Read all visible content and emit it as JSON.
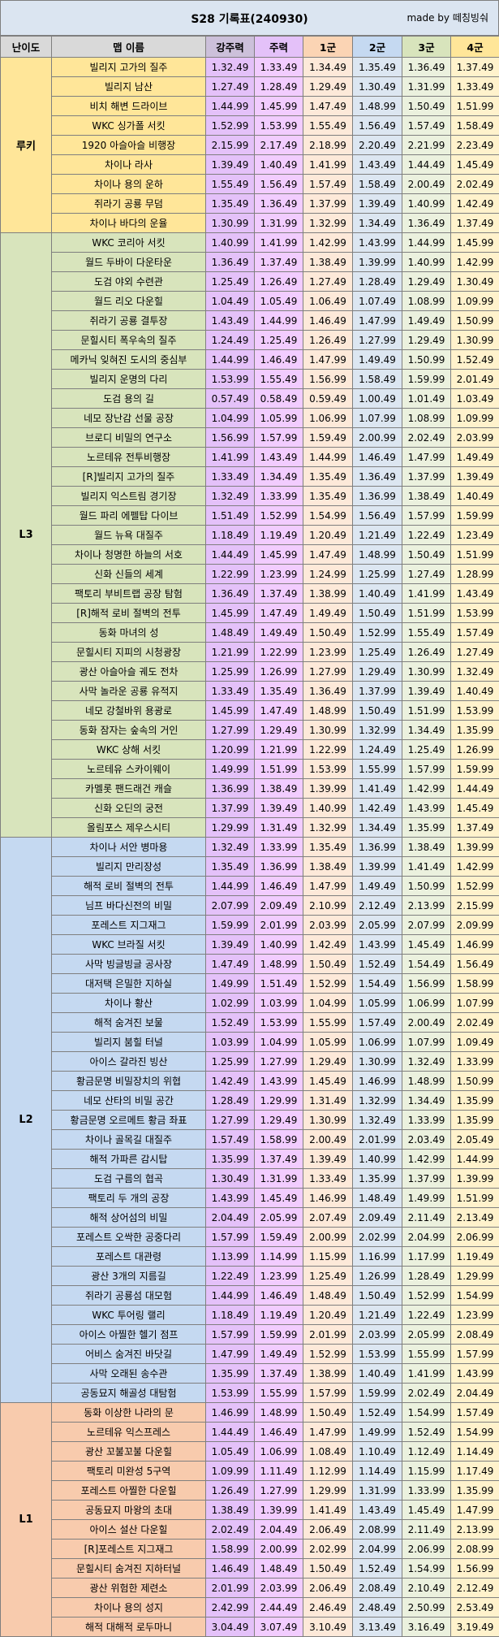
{
  "header": {
    "title": "S28 기록표(240930)",
    "credit": "made by 떼칭빙숴"
  },
  "columns": [
    "난이도",
    "맵 이름",
    "강주력",
    "주력",
    "1군",
    "2군",
    "3군",
    "4군"
  ],
  "colors": {
    "header_bg": "#dbe5f1",
    "col_header_bg": [
      "#d9d9d9",
      "#d9d9d9",
      "#ccc0da",
      "#e4c1f9",
      "#fbd4b4",
      "#c5d9f1",
      "#d8e4bc",
      "#ffe699"
    ],
    "col_bg": [
      "",
      "",
      "#e4c1f9",
      "#f2ccff",
      "#fde9d9",
      "#dce6f1",
      "#ebf1de",
      "#fff2cc"
    ],
    "group_bg": {
      "rookie": "#ffe699",
      "L3": "#d8e4bc",
      "L2": "#c5d9f1",
      "L1": "#f8cbad"
    }
  },
  "groups": [
    {
      "key": "rookie",
      "label": "루키",
      "rows": [
        [
          "빌리지 고가의 질주",
          "1.32.49",
          "1.33.49",
          "1.34.49",
          "1.35.49",
          "1.36.49",
          "1.37.49"
        ],
        [
          "빌리지 남산",
          "1.27.49",
          "1.28.49",
          "1.29.49",
          "1.30.49",
          "1.31.99",
          "1.33.49"
        ],
        [
          "비치 해변 드라이브",
          "1.44.99",
          "1.45.99",
          "1.47.49",
          "1.48.99",
          "1.50.49",
          "1.51.99"
        ],
        [
          "WKC 싱가폴 서킷",
          "1.52.99",
          "1.53.99",
          "1.55.49",
          "1.56.49",
          "1.57.49",
          "1.58.49"
        ],
        [
          "1920 아슬아슬 비행장",
          "2.15.99",
          "2.17.49",
          "2.18.99",
          "2.20.49",
          "2.21.99",
          "2.23.49"
        ],
        [
          "차이나 라사",
          "1.39.49",
          "1.40.49",
          "1.41.99",
          "1.43.49",
          "1.44.49",
          "1.45.49"
        ],
        [
          "차이나 용의 운하",
          "1.55.49",
          "1.56.49",
          "1.57.49",
          "1.58.49",
          "2.00.49",
          "2.02.49"
        ],
        [
          "쥐라기 공룡 무덤",
          "1.35.49",
          "1.36.49",
          "1.37.99",
          "1.39.49",
          "1.40.99",
          "1.42.49"
        ],
        [
          "차이나 바다의 운율",
          "1.30.99",
          "1.31.99",
          "1.32.99",
          "1.34.49",
          "1.36.49",
          "1.37.49"
        ]
      ]
    },
    {
      "key": "L3",
      "label": "L3",
      "rows": [
        [
          "WKC 코리아 서킷",
          "1.40.99",
          "1.41.99",
          "1.42.99",
          "1.43.99",
          "1.44.99",
          "1.45.99"
        ],
        [
          "월드 두바이 다운타운",
          "1.36.49",
          "1.37.49",
          "1.38.49",
          "1.39.99",
          "1.40.99",
          "1.42.99"
        ],
        [
          "도검 야외 수련관",
          "1.25.49",
          "1.26.49",
          "1.27.49",
          "1.28.49",
          "1.29.49",
          "1.30.49"
        ],
        [
          "월드 리오 다운힐",
          "1.04.49",
          "1.05.49",
          "1.06.49",
          "1.07.49",
          "1.08.99",
          "1.09.99"
        ],
        [
          "쥐라기 공룡 결투장",
          "1.43.49",
          "1.44.99",
          "1.46.49",
          "1.47.99",
          "1.49.49",
          "1.50.99"
        ],
        [
          "문힐시티 폭우속의 질주",
          "1.24.49",
          "1.25.49",
          "1.26.49",
          "1.27.99",
          "1.29.49",
          "1.30.99"
        ],
        [
          "메카닉 잊혀진 도시의 중심부",
          "1.44.99",
          "1.46.49",
          "1.47.99",
          "1.49.49",
          "1.50.99",
          "1.52.49"
        ],
        [
          "빌리지 운명의 다리",
          "1.53.99",
          "1.55.49",
          "1.56.99",
          "1.58.49",
          "1.59.99",
          "2.01.49"
        ],
        [
          "도검 용의 길",
          "0.57.49",
          "0.58.49",
          "0.59.49",
          "1.00.49",
          "1.01.49",
          "1.03.49"
        ],
        [
          "네모 장난감 선물 공장",
          "1.04.99",
          "1.05.99",
          "1.06.99",
          "1.07.99",
          "1.08.99",
          "1.09.99"
        ],
        [
          "브로디 비밀의 연구소",
          "1.56.99",
          "1.57.99",
          "1.59.49",
          "2.00.99",
          "2.02.49",
          "2.03.99"
        ],
        [
          "노르테유 전투비행장",
          "1.41.99",
          "1.43.49",
          "1.44.99",
          "1.46.49",
          "1.47.99",
          "1.49.49"
        ],
        [
          "[R]빌리지 고가의 질주",
          "1.33.49",
          "1.34.49",
          "1.35.49",
          "1.36.49",
          "1.37.99",
          "1.39.49"
        ],
        [
          "빌리지 익스트림 경기장",
          "1.32.49",
          "1.33.99",
          "1.35.49",
          "1.36.99",
          "1.38.49",
          "1.40.49"
        ],
        [
          "월드 파리 에펠탑 다이브",
          "1.51.49",
          "1.52.99",
          "1.54.99",
          "1.56.49",
          "1.57.99",
          "1.59.99"
        ],
        [
          "월드 뉴욕 대질주",
          "1.18.49",
          "1.19.49",
          "1.20.49",
          "1.21.49",
          "1.22.49",
          "1.23.49"
        ],
        [
          "차이나 청명한 하늘의 서호",
          "1.44.49",
          "1.45.99",
          "1.47.49",
          "1.48.99",
          "1.50.49",
          "1.51.99"
        ],
        [
          "신화 신들의 세계",
          "1.22.99",
          "1.23.99",
          "1.24.99",
          "1.25.99",
          "1.27.49",
          "1.28.99"
        ],
        [
          "팩토리 부비트랩 공장 탐험",
          "1.36.49",
          "1.37.49",
          "1.38.99",
          "1.40.49",
          "1.41.99",
          "1.43.49"
        ],
        [
          "[R]해적 로비 절벽의 전투",
          "1.45.99",
          "1.47.49",
          "1.49.49",
          "1.50.49",
          "1.51.99",
          "1.53.99"
        ],
        [
          "동화 마녀의 성",
          "1.48.49",
          "1.49.49",
          "1.50.49",
          "1.52.99",
          "1.55.49",
          "1.57.49"
        ],
        [
          "문힐시티 지피의 시청광장",
          "1.21.99",
          "1.22.99",
          "1.23.99",
          "1.25.49",
          "1.26.49",
          "1.27.49"
        ],
        [
          "광산 아슬아슬 궤도 전차",
          "1.25.99",
          "1.26.99",
          "1.27.99",
          "1.29.49",
          "1.30.99",
          "1.32.49"
        ],
        [
          "사막 놀라운 공룡 유적지",
          "1.33.49",
          "1.35.49",
          "1.36.49",
          "1.37.99",
          "1.39.49",
          "1.40.49"
        ],
        [
          "네모 강철바위 용광로",
          "1.45.99",
          "1.47.49",
          "1.48.99",
          "1.50.49",
          "1.51.99",
          "1.53.99"
        ],
        [
          "동화 잠자는 숲속의 거인",
          "1.27.99",
          "1.29.49",
          "1.30.99",
          "1.32.99",
          "1.34.49",
          "1.35.99"
        ],
        [
          "WKC 상해 서킷",
          "1.20.99",
          "1.21.99",
          "1.22.99",
          "1.24.49",
          "1.25.49",
          "1.26.99"
        ],
        [
          "노르테유 스카이웨이",
          "1.49.99",
          "1.51.99",
          "1.53.99",
          "1.55.99",
          "1.57.99",
          "1.59.99"
        ],
        [
          "카멜롯 팬드래건 캐슬",
          "1.36.99",
          "1.38.49",
          "1.39.99",
          "1.41.49",
          "1.42.99",
          "1.44.49"
        ],
        [
          "신화 오딘의 궁전",
          "1.37.99",
          "1.39.49",
          "1.40.99",
          "1.42.49",
          "1.43.99",
          "1.45.49"
        ],
        [
          "올림포스 제우스시티",
          "1.29.99",
          "1.31.49",
          "1.32.99",
          "1.34.49",
          "1.35.99",
          "1.37.49"
        ]
      ]
    },
    {
      "key": "L2",
      "label": "L2",
      "rows": [
        [
          "차이나 서안 병마용",
          "1.32.49",
          "1.33.99",
          "1.35.49",
          "1.36.99",
          "1.38.49",
          "1.39.99"
        ],
        [
          "빌리지 만리장성",
          "1.35.49",
          "1.36.99",
          "1.38.49",
          "1.39.99",
          "1.41.49",
          "1.42.99"
        ],
        [
          "해적 로비 절벽의 전투",
          "1.44.99",
          "1.46.49",
          "1.47.99",
          "1.49.49",
          "1.50.99",
          "1.52.99"
        ],
        [
          "님프 바다신전의 비밀",
          "2.07.99",
          "2.09.49",
          "2.10.99",
          "2.12.49",
          "2.13.99",
          "2.15.99"
        ],
        [
          "포레스트 지그재그",
          "1.59.99",
          "2.01.99",
          "2.03.99",
          "2.05.99",
          "2.07.99",
          "2.09.99"
        ],
        [
          "WKC 브라질 서킷",
          "1.39.49",
          "1.40.99",
          "1.42.49",
          "1.43.99",
          "1.45.49",
          "1.46.99"
        ],
        [
          "사막 빙글빙글 공사장",
          "1.47.49",
          "1.48.99",
          "1.50.49",
          "1.52.49",
          "1.54.49",
          "1.56.49"
        ],
        [
          "대저택 은밀한 지하실",
          "1.49.99",
          "1.51.49",
          "1.52.99",
          "1.54.49",
          "1.56.99",
          "1.58.99"
        ],
        [
          "차이나 황산",
          "1.02.99",
          "1.03.99",
          "1.04.99",
          "1.05.99",
          "1.06.99",
          "1.07.99"
        ],
        [
          "해적 숨겨진 보물",
          "1.52.49",
          "1.53.99",
          "1.55.99",
          "1.57.49",
          "2.00.49",
          "2.02.49"
        ],
        [
          "빌리지 붐힐 터널",
          "1.03.99",
          "1.04.99",
          "1.05.99",
          "1.06.99",
          "1.07.99",
          "1.09.49"
        ],
        [
          "아이스 갈라진 빙산",
          "1.25.99",
          "1.27.99",
          "1.29.49",
          "1.30.99",
          "1.32.49",
          "1.33.99"
        ],
        [
          "황금문명 비밀장치의 위협",
          "1.42.49",
          "1.43.99",
          "1.45.49",
          "1.46.99",
          "1.48.99",
          "1.50.99"
        ],
        [
          "네모 산타의 비밀 공간",
          "1.28.49",
          "1.29.99",
          "1.31.49",
          "1.32.99",
          "1.34.49",
          "1.35.99"
        ],
        [
          "황금문명 오르메트 황금 좌표",
          "1.27.99",
          "1.29.49",
          "1.30.99",
          "1.32.49",
          "1.33.99",
          "1.35.99"
        ],
        [
          "차이나 골목길 대질주",
          "1.57.49",
          "1.58.99",
          "2.00.49",
          "2.01.99",
          "2.03.49",
          "2.05.49"
        ],
        [
          "해적 가파른 감시탑",
          "1.35.99",
          "1.37.49",
          "1.39.49",
          "1.40.99",
          "1.42.99",
          "1.44.99"
        ],
        [
          "도검 구름의 협곡",
          "1.30.49",
          "1.31.99",
          "1.33.49",
          "1.35.99",
          "1.37.99",
          "1.39.99"
        ],
        [
          "팩토리 두 개의 공장",
          "1.43.99",
          "1.45.49",
          "1.46.99",
          "1.48.49",
          "1.49.99",
          "1.51.99"
        ],
        [
          "해적 상어섬의 비밀",
          "2.04.49",
          "2.05.99",
          "2.07.49",
          "2.09.49",
          "2.11.49",
          "2.13.49"
        ],
        [
          "포레스트 오싹한 공중다리",
          "1.57.99",
          "1.59.49",
          "2.00.99",
          "2.02.99",
          "2.04.99",
          "2.06.99"
        ],
        [
          "포레스트 대관령",
          "1.13.99",
          "1.14.99",
          "1.15.99",
          "1.16.99",
          "1.17.99",
          "1.19.49"
        ],
        [
          "광산 3개의 지름길",
          "1.22.49",
          "1.23.99",
          "1.25.49",
          "1.26.99",
          "1.28.49",
          "1.29.99"
        ],
        [
          "쥐라기 공룡섬 대모험",
          "1.44.99",
          "1.46.49",
          "1.48.49",
          "1.50.49",
          "1.52.99",
          "1.54.99"
        ],
        [
          "WKC 투어링 랠리",
          "1.18.49",
          "1.19.49",
          "1.20.49",
          "1.21.49",
          "1.22.49",
          "1.23.99"
        ],
        [
          "아이스 아찔한 헬기 점프",
          "1.57.99",
          "1.59.99",
          "2.01.99",
          "2.03.99",
          "2.05.99",
          "2.08.49"
        ],
        [
          "어비스 숨겨진 바닷길",
          "1.47.99",
          "1.49.49",
          "1.52.99",
          "1.53.99",
          "1.55.99",
          "1.57.99"
        ],
        [
          "사막 오래된 송수관",
          "1.35.99",
          "1.37.49",
          "1.38.99",
          "1.40.49",
          "1.41.99",
          "1.43.99"
        ],
        [
          "공동묘지 해골성 대탐험",
          "1.53.99",
          "1.55.99",
          "1.57.99",
          "1.59.99",
          "2.02.49",
          "2.04.49"
        ]
      ]
    },
    {
      "key": "L1",
      "label": "L1",
      "rows": [
        [
          "동화 이상한 나라의 문",
          "1.46.99",
          "1.48.99",
          "1.50.49",
          "1.52.49",
          "1.54.99",
          "1.57.49"
        ],
        [
          "노르테유 익스프레스",
          "1.44.49",
          "1.46.49",
          "1.47.99",
          "1.49.99",
          "1.52.49",
          "1.54.99"
        ],
        [
          "광산 꼬불꼬불 다운힐",
          "1.05.49",
          "1.06.99",
          "1.08.49",
          "1.10.49",
          "1.12.49",
          "1.14.49"
        ],
        [
          "팩토리 미완성 5구역",
          "1.09.99",
          "1.11.49",
          "1.12.99",
          "1.14.49",
          "1.15.99",
          "1.17.49"
        ],
        [
          "포레스트 아찔한 다운힐",
          "1.26.49",
          "1.27.99",
          "1.29.99",
          "1.31.99",
          "1.33.99",
          "1.35.99"
        ],
        [
          "공동묘지 마왕의 초대",
          "1.38.49",
          "1.39.99",
          "1.41.49",
          "1.43.49",
          "1.45.49",
          "1.47.99"
        ],
        [
          "아이스 설산 다운힐",
          "2.02.49",
          "2.04.49",
          "2.06.49",
          "2.08.99",
          "2.11.49",
          "2.13.99"
        ],
        [
          "[R]포레스트 지그재그",
          "1.58.99",
          "2.00.99",
          "2.02.99",
          "2.04.99",
          "2.06.99",
          "2.08.99"
        ],
        [
          "문힐시티 숨겨진 지하터널",
          "1.46.49",
          "1.48.49",
          "1.50.49",
          "1.52.49",
          "1.54.99",
          "1.56.99"
        ],
        [
          "광산 위험한 제련소",
          "2.01.99",
          "2.03.99",
          "2.06.49",
          "2.08.49",
          "2.10.49",
          "2.12.49"
        ],
        [
          "차이나 용의 성지",
          "2.42.99",
          "2.44.49",
          "2.46.49",
          "2.48.49",
          "2.50.99",
          "2.53.49"
        ],
        [
          "해적 대해적 로두마니",
          "3.04.49",
          "3.07.49",
          "3.10.49",
          "3.13.49",
          "3.16.49",
          "3.19.49"
        ]
      ]
    }
  ]
}
